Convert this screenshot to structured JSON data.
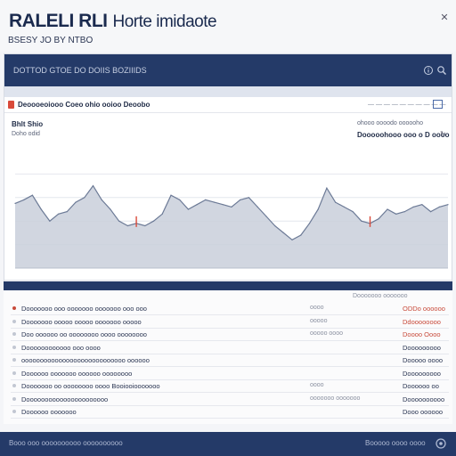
{
  "header": {
    "title_bold": "RALELI RLI",
    "title_rest": "Horte imidaote",
    "subtitle": "BSESY JO BY NTBO",
    "close_glyph": "✕"
  },
  "panel": {
    "title": "DOTTOD GTOE DO DOIIS BOZIIIDS",
    "icons": [
      "info-icon",
      "search-icon",
      "user-icon"
    ],
    "toolbar": {
      "label": "Deoooeoiooo Coeo  ohio  ooioo Deoobo",
      "right_text": "— — — — — — — — — —"
    },
    "info": {
      "left_1": "Bhlt  Shio",
      "left_2": "Doho odid",
      "right_1": "ohooo oooodo oooooho",
      "right_2": "Dooooohooo ooo o D oooo"
    }
  },
  "colors": {
    "navy": "#243a68",
    "area_fill": "#c9cfdb",
    "area_stroke": "#6c7a96",
    "accent_red": "#d94a3a"
  },
  "chart_data": {
    "type": "area",
    "title": "",
    "xlabel": "",
    "ylabel": "",
    "ylim": [
      0,
      100
    ],
    "grid": true,
    "x": [
      0,
      1,
      2,
      3,
      4,
      5,
      6,
      7,
      8,
      9,
      10,
      11,
      12,
      13,
      14,
      15,
      16,
      17,
      18,
      19,
      20,
      21,
      22,
      23,
      24,
      25,
      26,
      27,
      28,
      29,
      30,
      31,
      32,
      33,
      34,
      35,
      36,
      37,
      38,
      39,
      40,
      41,
      42,
      43,
      44,
      45,
      46,
      47,
      48,
      49,
      50
    ],
    "series": [
      {
        "values": [
          55,
          58,
          62,
          50,
          40,
          46,
          48,
          56,
          60,
          70,
          58,
          50,
          40,
          36,
          38,
          36,
          40,
          46,
          62,
          58,
          50,
          54,
          58,
          56,
          54,
          52,
          58,
          60,
          52,
          44,
          36,
          30,
          24,
          28,
          38,
          50,
          68,
          56,
          52,
          48,
          40,
          38,
          42,
          50,
          46,
          48,
          52,
          54,
          48,
          52,
          54
        ]
      }
    ],
    "markers": [
      {
        "x": 14,
        "label": "",
        "color": "#d94a3a"
      },
      {
        "x": 41,
        "label": "",
        "color": "#d94a3a"
      }
    ]
  },
  "list": {
    "header": "Dooooooo ooooooo",
    "rows": [
      {
        "label": "Dooooooo ooo ooooooo ooooooo ooo ooo",
        "mid": "oooo",
        "value": "ODDo oooooo",
        "value_color": "red",
        "bullet": "red"
      },
      {
        "label": "Dooooooo  ooooo ooooo ooooooo ooooo",
        "mid": "ooooo",
        "value": "Ddoooooooo",
        "value_color": "red",
        "bullet": "muted"
      },
      {
        "label": "Doo oooooo oo oooooooo oooo oooooooo",
        "mid": "ooooo oooo",
        "value": "Doooo Oooo",
        "value_color": "red",
        "bullet": "muted"
      },
      {
        "label": "Doooooooooooo ooo oooo",
        "mid": "",
        "value": "Dooooooooo",
        "value_color": "plain",
        "bullet": "muted"
      },
      {
        "label": "oooooooooooooooooooooooooooo oooooo",
        "mid": "",
        "value": "Dooooo oooo",
        "value_color": "plain",
        "bullet": "muted"
      },
      {
        "label": "Doooooo ooooooo oooooo oooooooo",
        "mid": "",
        "value": "Dooooooooo",
        "value_color": "plain",
        "bullet": "muted"
      },
      {
        "label": "Dooooooo oo oooooooo oooo Booiooiooooooo",
        "mid": "oooo",
        "value": "Doooooo oo",
        "value_color": "plain",
        "bullet": "muted"
      },
      {
        "label": "Doooooooooooooooooooooo",
        "mid": "ooooooo ooooooo",
        "value": "Doooooooooo",
        "value_color": "plain",
        "bullet": "muted"
      },
      {
        "label": "Doooooo ooooooo",
        "mid": "",
        "value": "Dooo oooooo",
        "value_color": "plain",
        "bullet": "muted"
      }
    ]
  },
  "footer": {
    "left": "Booo ooo oooooooooo oooooooooo",
    "right": "Booooo oooo oooo"
  }
}
